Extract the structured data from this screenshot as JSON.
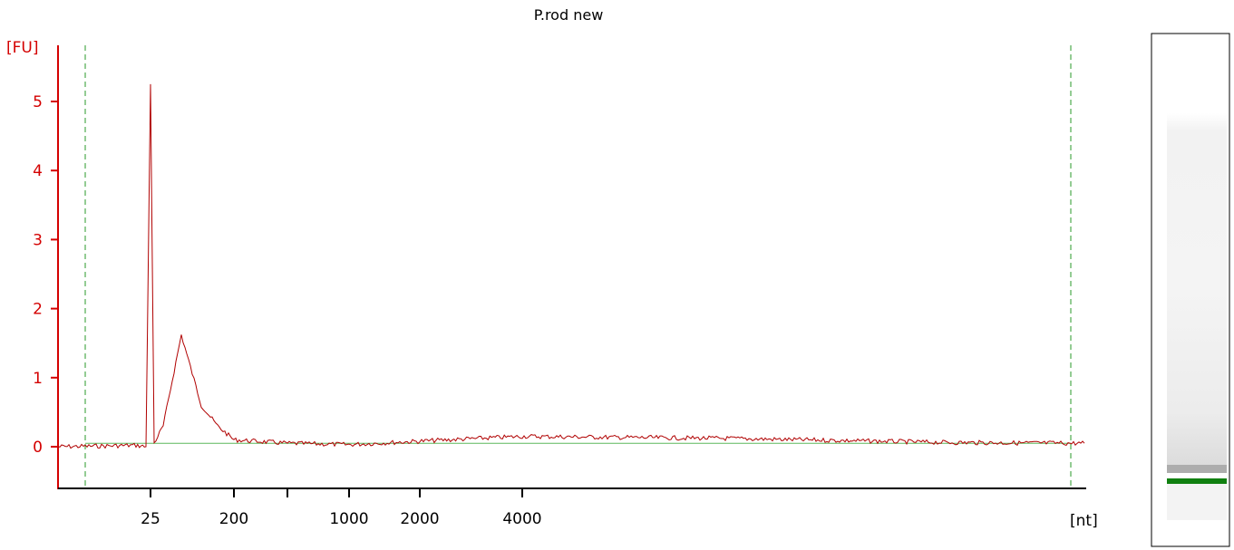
{
  "chart_data": {
    "type": "line",
    "title": "P.rod new",
    "y_unit": "[FU]",
    "x_unit": "[nt]",
    "ylim": [
      -0.6,
      5.8
    ],
    "y_ticks": [
      0,
      1,
      2,
      3,
      4,
      5
    ],
    "y_tick_labels": [
      "0",
      "1",
      "2",
      "3",
      "4",
      "5"
    ],
    "x_ticks": [
      {
        "label": "25",
        "at": 25
      },
      {
        "label": "200",
        "at": 200
      },
      {
        "label": "",
        "at": 500
      },
      {
        "label": "1000",
        "at": 1000
      },
      {
        "label": "2000",
        "at": 2000
      },
      {
        "label": "4000",
        "at": 4000
      }
    ],
    "marker_lines": [
      "lower marker",
      "upper marker"
    ],
    "baseline_level": 0.05,
    "series": [
      {
        "color": "#b00000",
        "points": [
          [
            "start",
            0.0
          ],
          [
            "pre-25",
            0.02
          ],
          [
            24,
            0.0
          ],
          [
            25,
            5.25
          ],
          [
            26,
            0.05
          ],
          [
            40,
            0.3
          ],
          [
            60,
            1.62
          ],
          [
            90,
            0.6
          ],
          [
            150,
            0.3
          ],
          [
            200,
            0.1
          ],
          [
            500,
            0.05
          ],
          [
            1000,
            0.03
          ],
          [
            2000,
            0.08
          ],
          [
            4000,
            0.15
          ],
          [
            "mid",
            0.12
          ],
          [
            "late",
            0.06
          ],
          [
            "end",
            0.05
          ]
        ]
      }
    ],
    "grid": false,
    "legend": "none"
  },
  "gel_lane": {
    "band_color": "#108010"
  }
}
